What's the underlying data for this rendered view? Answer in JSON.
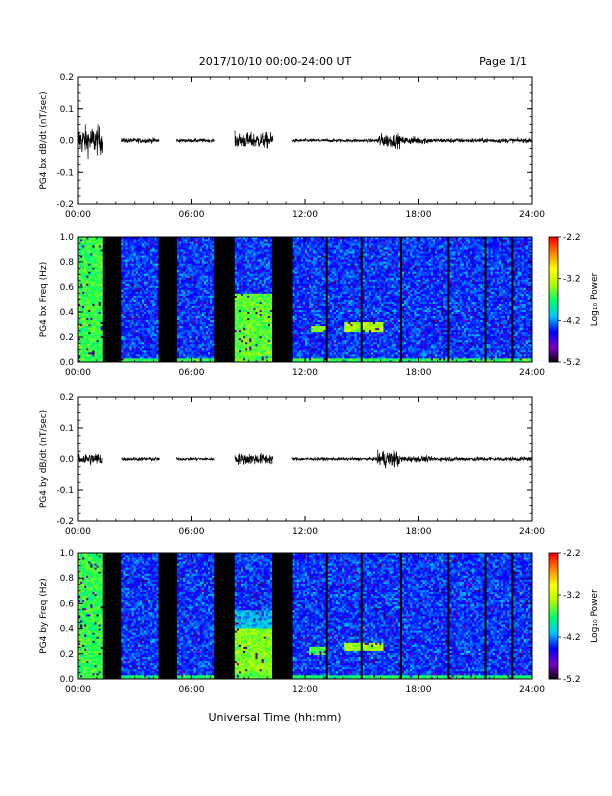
{
  "header": {
    "date_range": "2017/10/10  00:00-24:00 UT",
    "page": "Page 1/1"
  },
  "footer": {
    "xlabel": "Universal Time (hh:mm)"
  },
  "colorbar": {
    "ticks": [
      "-2.2",
      "-3.2",
      "-4.2",
      "-5.2"
    ],
    "label": "Log₁₀ Power",
    "colors": [
      "#000000",
      "#7a00c8",
      "#0000ff",
      "#00c8ff",
      "#00ff66",
      "#aaff00",
      "#ffff00",
      "#ff8800",
      "#ff0000"
    ]
  },
  "chart_data": [
    {
      "type": "line",
      "ylabel": "PG4 bx dB/dt (nT/sec)",
      "ylim": [
        -0.2,
        0.2
      ],
      "yticks": [
        "0.2",
        "0.1",
        "0.0",
        "-0.1",
        "-0.2"
      ],
      "xlim": [
        "00:00",
        "24:00"
      ],
      "xticks": [
        "00:00",
        "06:00",
        "12:00",
        "18:00",
        "24:00"
      ],
      "series": [
        {
          "segments": [
            [
              0.0,
              1.3
            ],
            [
              2.3,
              4.3
            ],
            [
              5.2,
              7.2
            ],
            [
              8.3,
              10.3
            ],
            [
              11.3,
              24.0
            ]
          ],
          "amplitude_profile": [
            {
              "t0": 0.0,
              "t1": 1.3,
              "amp": 0.045
            },
            {
              "t0": 2.3,
              "t1": 4.3,
              "amp": 0.008
            },
            {
              "t0": 5.2,
              "t1": 7.2,
              "amp": 0.006
            },
            {
              "t0": 8.3,
              "t1": 10.3,
              "amp": 0.025
            },
            {
              "t0": 11.3,
              "t1": 15.8,
              "amp": 0.005
            },
            {
              "t0": 15.8,
              "t1": 17.0,
              "amp": 0.022
            },
            {
              "t0": 17.0,
              "t1": 18.5,
              "amp": 0.012
            },
            {
              "t0": 18.5,
              "t1": 24.0,
              "amp": 0.007
            }
          ]
        }
      ]
    },
    {
      "type": "heatmap",
      "ylabel": "PG4 bx Freq (Hz)",
      "ylim": [
        0.0,
        1.0
      ],
      "yticks": [
        "1.0",
        "0.8",
        "0.6",
        "0.4",
        "0.2",
        "0.0"
      ],
      "xlim": [
        "00:00",
        "24:00"
      ],
      "xticks": [
        "00:00",
        "06:00",
        "12:00",
        "18:00",
        "24:00"
      ],
      "zlim": [
        -5.2,
        -2.2
      ],
      "data_gaps_hours": [
        [
          1.3,
          2.3
        ],
        [
          4.3,
          5.2
        ],
        [
          7.2,
          8.3
        ],
        [
          10.3,
          11.3
        ]
      ],
      "thin_gaps_hours": [
        13.1,
        15.0,
        17.1,
        19.6,
        21.5,
        23.0
      ],
      "features": [
        {
          "t0": 0.0,
          "t1": 1.3,
          "f0": 0.0,
          "f1": 1.0,
          "level": -3.6
        },
        {
          "t0": 8.3,
          "t1": 10.3,
          "f0": 0.05,
          "f1": 0.55,
          "level": -3.5
        },
        {
          "t0": 12.3,
          "t1": 13.2,
          "f0": 0.24,
          "f1": 0.29,
          "level": -3.4
        },
        {
          "t0": 14.1,
          "t1": 16.2,
          "f0": 0.25,
          "f1": 0.32,
          "level": -3.3
        },
        {
          "t0": 0.0,
          "t1": 24.0,
          "f0": 0.0,
          "f1": 0.04,
          "level": -3.6
        }
      ]
    },
    {
      "type": "line",
      "ylabel": "PG4 by dB/dt (nT/sec)",
      "ylim": [
        -0.2,
        0.2
      ],
      "yticks": [
        "0.2",
        "0.1",
        "0.0",
        "-0.1",
        "-0.2"
      ],
      "xlim": [
        "00:00",
        "24:00"
      ],
      "xticks": [
        "00:00",
        "06:00",
        "12:00",
        "18:00",
        "24:00"
      ],
      "series": [
        {
          "segments": [
            [
              0.0,
              1.3
            ],
            [
              2.3,
              4.3
            ],
            [
              5.2,
              7.2
            ],
            [
              8.3,
              10.3
            ],
            [
              11.3,
              24.0
            ]
          ],
          "amplitude_profile": [
            {
              "t0": 0.0,
              "t1": 1.3,
              "amp": 0.02
            },
            {
              "t0": 2.3,
              "t1": 4.3,
              "amp": 0.006
            },
            {
              "t0": 5.2,
              "t1": 7.2,
              "amp": 0.005
            },
            {
              "t0": 8.3,
              "t1": 10.3,
              "amp": 0.018
            },
            {
              "t0": 11.3,
              "t1": 15.8,
              "amp": 0.005
            },
            {
              "t0": 15.8,
              "t1": 17.0,
              "amp": 0.028
            },
            {
              "t0": 17.0,
              "t1": 18.5,
              "amp": 0.01
            },
            {
              "t0": 18.5,
              "t1": 24.0,
              "amp": 0.007
            }
          ]
        }
      ]
    },
    {
      "type": "heatmap",
      "ylabel": "PG4 by Freq (Hz)",
      "ylim": [
        0.0,
        1.0
      ],
      "yticks": [
        "1.0",
        "0.8",
        "0.6",
        "0.4",
        "0.2",
        "0.0"
      ],
      "xlim": [
        "00:00",
        "24:00"
      ],
      "xticks": [
        "00:00",
        "06:00",
        "12:00",
        "18:00",
        "24:00"
      ],
      "zlim": [
        -5.2,
        -2.2
      ],
      "data_gaps_hours": [
        [
          1.3,
          2.3
        ],
        [
          4.3,
          5.2
        ],
        [
          7.2,
          8.3
        ],
        [
          10.3,
          11.3
        ]
      ],
      "thin_gaps_hours": [
        13.1,
        15.0,
        17.1,
        19.6,
        21.5,
        23.0
      ],
      "features": [
        {
          "t0": 0.0,
          "t1": 1.3,
          "f0": 0.0,
          "f1": 1.0,
          "level": -3.6
        },
        {
          "t0": 8.3,
          "t1": 10.3,
          "f0": 0.05,
          "f1": 0.4,
          "level": -3.4
        },
        {
          "t0": 12.2,
          "t1": 13.2,
          "f0": 0.2,
          "f1": 0.26,
          "level": -3.6
        },
        {
          "t0": 14.1,
          "t1": 16.2,
          "f0": 0.22,
          "f1": 0.29,
          "level": -3.3
        },
        {
          "t0": 0.0,
          "t1": 24.0,
          "f0": 0.0,
          "f1": 0.04,
          "level": -3.7
        }
      ]
    }
  ]
}
